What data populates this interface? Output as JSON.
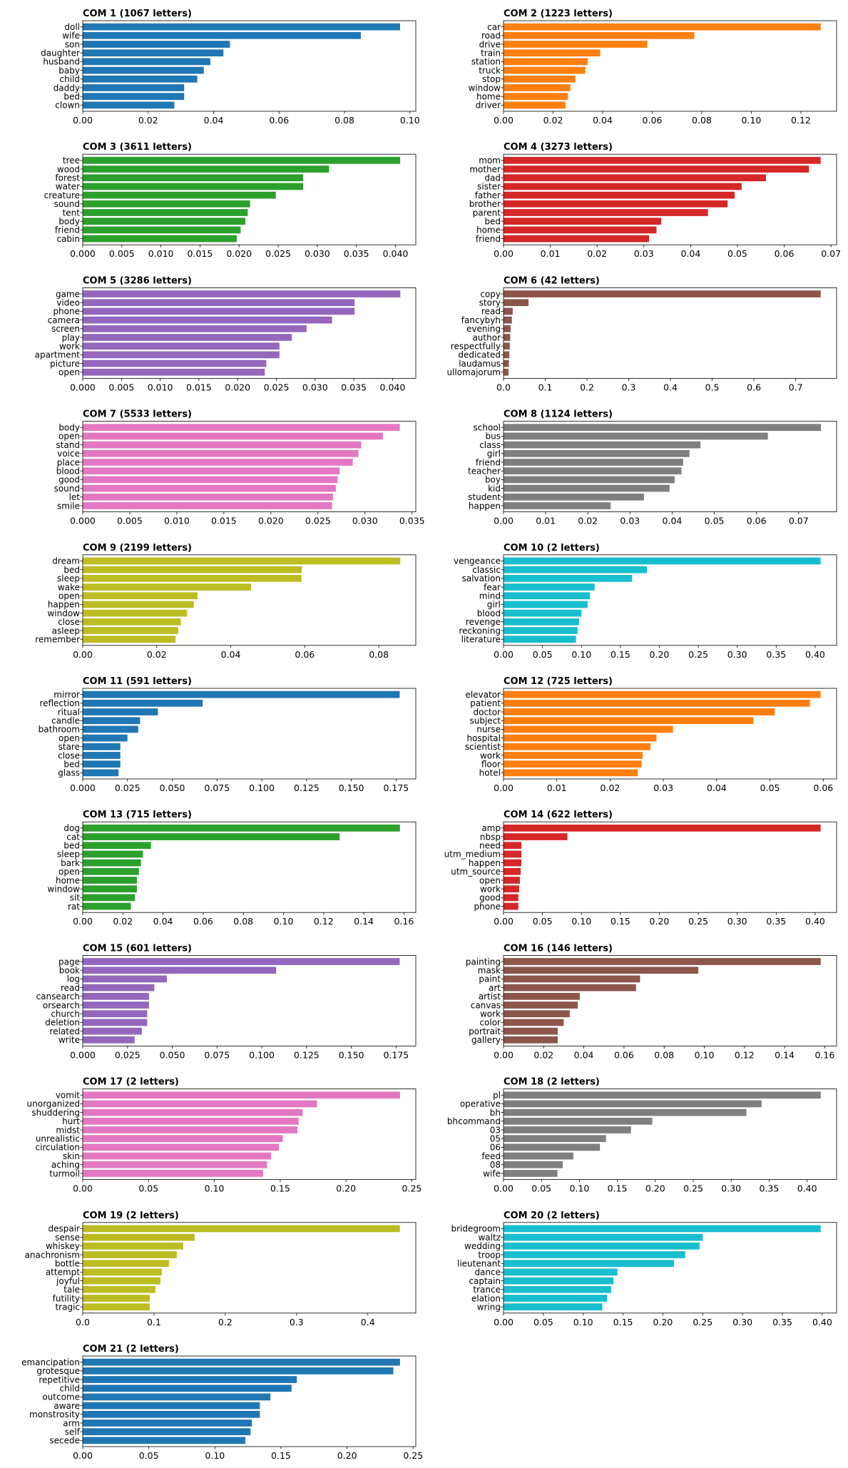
{
  "chart_data": [
    {
      "type": "bar",
      "orientation": "horizontal",
      "title": "COM 1 (1067 letters)",
      "color": "#1f77b4",
      "categories": [
        "doll",
        "wife",
        "son",
        "daughter",
        "husband",
        "baby",
        "child",
        "daddy",
        "bed",
        "clown"
      ],
      "values": [
        0.097,
        0.085,
        0.045,
        0.043,
        0.039,
        0.037,
        0.035,
        0.031,
        0.031,
        0.028
      ],
      "xlim": [
        0,
        0.1018
      ],
      "xticks": [
        "0.00",
        "0.02",
        "0.04",
        "0.06",
        "0.08",
        "0.10"
      ]
    },
    {
      "type": "bar",
      "orientation": "horizontal",
      "title": "COM 2 (1223 letters)",
      "color": "#ff7f0e",
      "categories": [
        "car",
        "road",
        "drive",
        "train",
        "station",
        "truck",
        "stop",
        "window",
        "home",
        "driver"
      ],
      "values": [
        0.128,
        0.077,
        0.058,
        0.039,
        0.034,
        0.033,
        0.029,
        0.027,
        0.026,
        0.025
      ],
      "xlim": [
        0,
        0.1344
      ],
      "xticks": [
        "0.00",
        "0.02",
        "0.04",
        "0.06",
        "0.08",
        "0.10",
        "0.12"
      ]
    },
    {
      "type": "bar",
      "orientation": "horizontal",
      "title": "COM 3 (3611 letters)",
      "color": "#2ca02c",
      "categories": [
        "tree",
        "wood",
        "forest",
        "water",
        "creature",
        "sound",
        "tent",
        "body",
        "friend",
        "cabin"
      ],
      "values": [
        0.0406,
        0.0315,
        0.0282,
        0.0282,
        0.0247,
        0.0214,
        0.0211,
        0.0208,
        0.0202,
        0.0197
      ],
      "xlim": [
        0,
        0.0426
      ],
      "xticks": [
        "0.000",
        "0.005",
        "0.010",
        "0.015",
        "0.020",
        "0.025",
        "0.030",
        "0.035",
        "0.040"
      ]
    },
    {
      "type": "bar",
      "orientation": "horizontal",
      "title": "COM 4 (3273 letters)",
      "color": "#d62728",
      "categories": [
        "mom",
        "mother",
        "dad",
        "sister",
        "father",
        "brother",
        "parent",
        "bed",
        "home",
        "friend"
      ],
      "values": [
        0.0678,
        0.0653,
        0.0561,
        0.0509,
        0.0494,
        0.0479,
        0.0437,
        0.0337,
        0.0327,
        0.0311
      ],
      "xlim": [
        0,
        0.0712
      ],
      "xticks": [
        "0.00",
        "0.01",
        "0.02",
        "0.03",
        "0.04",
        "0.05",
        "0.06",
        "0.07"
      ]
    },
    {
      "type": "bar",
      "orientation": "horizontal",
      "title": "COM 5 (3286 letters)",
      "color": "#9467bd",
      "categories": [
        "game",
        "video",
        "phone",
        "camera",
        "screen",
        "play",
        "work",
        "apartment",
        "picture",
        "open"
      ],
      "values": [
        0.041,
        0.0351,
        0.0351,
        0.0322,
        0.0289,
        0.027,
        0.0254,
        0.0254,
        0.0237,
        0.0235
      ],
      "xlim": [
        0,
        0.043
      ],
      "xticks": [
        "0.000",
        "0.005",
        "0.010",
        "0.015",
        "0.020",
        "0.025",
        "0.030",
        "0.035",
        "0.040"
      ]
    },
    {
      "type": "bar",
      "orientation": "horizontal",
      "title": "COM 6 (42 letters)",
      "color": "#8c564b",
      "categories": [
        "copy",
        "story",
        "read",
        "fancybyh",
        "evening",
        "author",
        "respectfully",
        "dedicated",
        "laudamus",
        "ullomajorum"
      ],
      "values": [
        0.76,
        0.06,
        0.022,
        0.02,
        0.017,
        0.016,
        0.015,
        0.014,
        0.013,
        0.012
      ],
      "xlim": [
        0,
        0.798
      ],
      "xticks": [
        "0.0",
        "0.1",
        "0.2",
        "0.3",
        "0.4",
        "0.5",
        "0.6",
        "0.7"
      ]
    },
    {
      "type": "bar",
      "orientation": "horizontal",
      "title": "COM 7 (5533 letters)",
      "color": "#e377c2",
      "categories": [
        "body",
        "open",
        "stand",
        "voice",
        "place",
        "blood",
        "good",
        "sound",
        "let",
        "smile"
      ],
      "values": [
        0.0337,
        0.0319,
        0.0296,
        0.0293,
        0.0287,
        0.0273,
        0.0271,
        0.0269,
        0.0266,
        0.0265
      ],
      "xlim": [
        0,
        0.0354
      ],
      "xticks": [
        "0.000",
        "0.005",
        "0.010",
        "0.015",
        "0.020",
        "0.025",
        "0.030",
        "0.035"
      ]
    },
    {
      "type": "bar",
      "orientation": "horizontal",
      "title": "COM 8 (1124 letters)",
      "color": "#7f7f7f",
      "categories": [
        "school",
        "bus",
        "class",
        "girl",
        "friend",
        "teacher",
        "boy",
        "kid",
        "student",
        "happen"
      ],
      "values": [
        0.0753,
        0.0627,
        0.0467,
        0.0441,
        0.0426,
        0.0422,
        0.0406,
        0.0394,
        0.0333,
        0.0254
      ],
      "xlim": [
        0,
        0.079
      ],
      "xticks": [
        "0.00",
        "0.01",
        "0.02",
        "0.03",
        "0.04",
        "0.05",
        "0.06",
        "0.07"
      ]
    },
    {
      "type": "bar",
      "orientation": "horizontal",
      "title": "COM 9 (2199 letters)",
      "color": "#bcbd22",
      "categories": [
        "dream",
        "bed",
        "sleep",
        "wake",
        "open",
        "happen",
        "window",
        "close",
        "asleep",
        "remember"
      ],
      "values": [
        0.0858,
        0.0592,
        0.0591,
        0.0455,
        0.031,
        0.03,
        0.0282,
        0.0265,
        0.0258,
        0.0251
      ],
      "xlim": [
        0,
        0.09
      ],
      "xticks": [
        "0.00",
        "0.02",
        "0.04",
        "0.06",
        "0.08"
      ]
    },
    {
      "type": "bar",
      "orientation": "horizontal",
      "title": "COM 10 (2 letters)",
      "color": "#17becf",
      "categories": [
        "vengeance",
        "classic",
        "salvation",
        "fear",
        "mind",
        "girl",
        "blood",
        "revenge",
        "reckoning",
        "literature"
      ],
      "values": [
        0.407,
        0.184,
        0.165,
        0.117,
        0.111,
        0.108,
        0.1,
        0.097,
        0.095,
        0.093
      ],
      "xlim": [
        0,
        0.4275
      ],
      "xticks": [
        "0.00",
        "0.05",
        "0.10",
        "0.15",
        "0.20",
        "0.25",
        "0.30",
        "0.35",
        "0.40"
      ]
    },
    {
      "type": "bar",
      "orientation": "horizontal",
      "title": "COM 11 (591 letters)",
      "color": "#1f77b4",
      "categories": [
        "mirror",
        "reflection",
        "ritual",
        "candle",
        "bathroom",
        "open",
        "stare",
        "close",
        "bed",
        "glass"
      ],
      "values": [
        0.177,
        0.067,
        0.042,
        0.032,
        0.031,
        0.025,
        0.021,
        0.021,
        0.021,
        0.02
      ],
      "xlim": [
        0,
        0.186
      ],
      "xticks": [
        "0.000",
        "0.025",
        "0.050",
        "0.075",
        "0.100",
        "0.125",
        "0.150",
        "0.175"
      ]
    },
    {
      "type": "bar",
      "orientation": "horizontal",
      "title": "COM 12 (725 letters)",
      "color": "#ff7f0e",
      "categories": [
        "elevator",
        "patient",
        "doctor",
        "subject",
        "nurse",
        "hospital",
        "scientist",
        "work",
        "floor",
        "hotel"
      ],
      "values": [
        0.0595,
        0.0575,
        0.0509,
        0.0469,
        0.0318,
        0.0287,
        0.0276,
        0.0261,
        0.0259,
        0.0252
      ],
      "xlim": [
        0,
        0.0625
      ],
      "xticks": [
        "0.00",
        "0.01",
        "0.02",
        "0.03",
        "0.04",
        "0.05",
        "0.06"
      ]
    },
    {
      "type": "bar",
      "orientation": "horizontal",
      "title": "COM 13 (715 letters)",
      "color": "#2ca02c",
      "categories": [
        "dog",
        "cat",
        "bed",
        "sleep",
        "bark",
        "open",
        "home",
        "window",
        "sit",
        "rat"
      ],
      "values": [
        0.158,
        0.128,
        0.034,
        0.03,
        0.029,
        0.028,
        0.027,
        0.027,
        0.026,
        0.024
      ],
      "xlim": [
        0,
        0.1659
      ],
      "xticks": [
        "0.00",
        "0.02",
        "0.04",
        "0.06",
        "0.08",
        "0.10",
        "0.12",
        "0.14",
        "0.16"
      ]
    },
    {
      "type": "bar",
      "orientation": "horizontal",
      "title": "COM 14 (622 letters)",
      "color": "#d62728",
      "categories": [
        "amp",
        "nbsp",
        "need",
        "utm_medium",
        "happen",
        "utm_source",
        "open",
        "work",
        "good",
        "phone"
      ],
      "values": [
        0.407,
        0.082,
        0.023,
        0.023,
        0.023,
        0.022,
        0.021,
        0.02,
        0.019,
        0.019
      ],
      "xlim": [
        0,
        0.4275
      ],
      "xticks": [
        "0.00",
        "0.05",
        "0.10",
        "0.15",
        "0.20",
        "0.25",
        "0.30",
        "0.35",
        "0.40"
      ]
    },
    {
      "type": "bar",
      "orientation": "horizontal",
      "title": "COM 15 (601 letters)",
      "color": "#9467bd",
      "categories": [
        "page",
        "book",
        "log",
        "read",
        "cansearch",
        "orsearch",
        "church",
        "deletion",
        "related",
        "write"
      ],
      "values": [
        0.177,
        0.108,
        0.047,
        0.04,
        0.037,
        0.037,
        0.036,
        0.036,
        0.033,
        0.029
      ],
      "xlim": [
        0,
        0.186
      ],
      "xticks": [
        "0.000",
        "0.025",
        "0.050",
        "0.075",
        "0.100",
        "0.125",
        "0.150",
        "0.175"
      ]
    },
    {
      "type": "bar",
      "orientation": "horizontal",
      "title": "COM 16 (146 letters)",
      "color": "#8c564b",
      "categories": [
        "painting",
        "mask",
        "paint",
        "art",
        "artist",
        "canvas",
        "work",
        "color",
        "portrait",
        "gallery"
      ],
      "values": [
        0.158,
        0.097,
        0.068,
        0.066,
        0.038,
        0.037,
        0.033,
        0.03,
        0.027,
        0.027
      ],
      "xlim": [
        0,
        0.1659
      ],
      "xticks": [
        "0.00",
        "0.02",
        "0.04",
        "0.06",
        "0.08",
        "0.10",
        "0.12",
        "0.14",
        "0.16"
      ]
    },
    {
      "type": "bar",
      "orientation": "horizontal",
      "title": "COM 17 (2 letters)",
      "color": "#e377c2",
      "categories": [
        "vomit",
        "unorganized",
        "shuddering",
        "hurt",
        "midst",
        "unrealistic",
        "circulation",
        "skin",
        "aching",
        "turmoil"
      ],
      "values": [
        0.241,
        0.178,
        0.167,
        0.164,
        0.163,
        0.152,
        0.149,
        0.143,
        0.14,
        0.137
      ],
      "xlim": [
        0,
        0.253
      ],
      "xticks": [
        "0.00",
        "0.05",
        "0.10",
        "0.15",
        "0.20",
        "0.25"
      ]
    },
    {
      "type": "bar",
      "orientation": "horizontal",
      "title": "COM 18 (2 letters)",
      "color": "#7f7f7f",
      "categories": [
        "pl",
        "operative",
        "bh",
        "bhcommand",
        "03",
        "05",
        "06",
        "feed",
        "08",
        "wife"
      ],
      "values": [
        0.418,
        0.34,
        0.32,
        0.196,
        0.168,
        0.135,
        0.127,
        0.092,
        0.078,
        0.071
      ],
      "xlim": [
        0,
        0.4389
      ],
      "xticks": [
        "0.00",
        "0.05",
        "0.10",
        "0.15",
        "0.20",
        "0.25",
        "0.30",
        "0.35",
        "0.40"
      ]
    },
    {
      "type": "bar",
      "orientation": "horizontal",
      "title": "COM 19 (2 letters)",
      "color": "#bcbd22",
      "categories": [
        "despair",
        "sense",
        "whiskey",
        "anachronism",
        "bottle",
        "attempt",
        "joyful",
        "tale",
        "futility",
        "tragic"
      ],
      "values": [
        0.445,
        0.157,
        0.141,
        0.132,
        0.121,
        0.111,
        0.109,
        0.102,
        0.094,
        0.094
      ],
      "xlim": [
        0,
        0.4673
      ],
      "xticks": [
        "0.0",
        "0.1",
        "0.2",
        "0.3",
        "0.4"
      ]
    },
    {
      "type": "bar",
      "orientation": "horizontal",
      "title": "COM 20 (2 letters)",
      "color": "#17becf",
      "categories": [
        "bridegroom",
        "waltz",
        "wedding",
        "troop",
        "lieutenant",
        "dance",
        "captain",
        "trance",
        "elation",
        "wring"
      ],
      "values": [
        0.398,
        0.25,
        0.246,
        0.228,
        0.214,
        0.143,
        0.138,
        0.135,
        0.13,
        0.124
      ],
      "xlim": [
        0,
        0.418
      ],
      "xticks": [
        "0.00",
        "0.05",
        "0.10",
        "0.15",
        "0.20",
        "0.25",
        "0.30",
        "0.35",
        "0.40"
      ]
    },
    {
      "type": "bar",
      "orientation": "horizontal",
      "title": "COM 21 (2 letters)",
      "color": "#1f77b4",
      "categories": [
        "emancipation",
        "grotesque",
        "repetitive",
        "child",
        "outcome",
        "aware",
        "monstrosity",
        "arm",
        "self",
        "secede"
      ],
      "values": [
        0.24,
        0.235,
        0.162,
        0.158,
        0.142,
        0.134,
        0.134,
        0.128,
        0.127,
        0.123
      ],
      "xlim": [
        0,
        0.252
      ],
      "xticks": [
        "0.00",
        "0.05",
        "0.10",
        "0.15",
        "0.20",
        "0.25"
      ]
    }
  ]
}
